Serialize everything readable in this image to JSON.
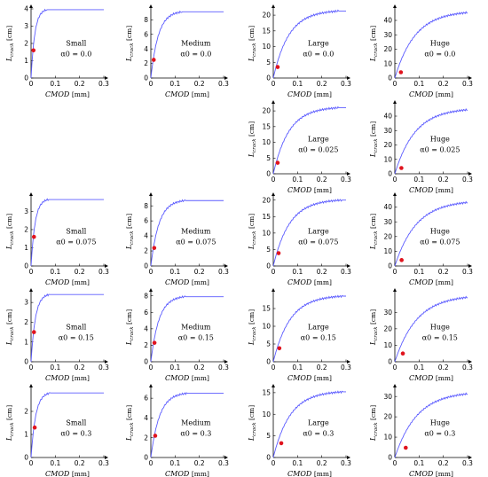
{
  "common": {
    "xlabel": "CMOD",
    "xunit": "[mm]",
    "ylabel": "L",
    "ysub": "crack",
    "yunit": "[cm]",
    "xticks": [
      0,
      0.1,
      0.2,
      0.3
    ]
  },
  "chart_data": [
    {
      "type": "line",
      "row": 0,
      "col": 0,
      "size": "Small",
      "alpha": "α0 = 0.0",
      "ymax": 4,
      "yticks": [
        0,
        1,
        2,
        3,
        4
      ],
      "xsat": 0.065,
      "ysat": 3.95,
      "point": [
        0.01,
        1.6
      ]
    },
    {
      "type": "line",
      "row": 0,
      "col": 1,
      "size": "Medium",
      "alpha": "α0 = 0.0",
      "ymax": 9.5,
      "yticks": [
        0,
        2,
        4,
        6,
        8
      ],
      "xsat": 0.13,
      "ysat": 9.1,
      "point": [
        0.012,
        2.5
      ]
    },
    {
      "type": "line",
      "row": 0,
      "col": 2,
      "size": "Large",
      "alpha": "α0 = 0.0",
      "ymax": 22,
      "yticks": [
        0,
        5,
        10,
        15,
        20
      ],
      "xsat": 0.27,
      "ysat": 21.3,
      "point": [
        0.018,
        3.5
      ]
    },
    {
      "type": "line",
      "row": 0,
      "col": 3,
      "size": "Huge",
      "alpha": "α0 = 0.0",
      "ymax": 48,
      "yticks": [
        0,
        10,
        20,
        30,
        40
      ],
      "xsat": 0.35,
      "ysat": 46,
      "point": [
        0.025,
        4
      ]
    },
    {
      "type": "line",
      "row": 1,
      "col": 2,
      "size": "Large",
      "alpha": "α0 = 0.025",
      "ymax": 22,
      "yticks": [
        0,
        5,
        10,
        15,
        20
      ],
      "xsat": 0.27,
      "ysat": 21,
      "point": [
        0.018,
        3.5
      ]
    },
    {
      "type": "line",
      "row": 1,
      "col": 3,
      "size": "Huge",
      "alpha": "α0 = 0.025",
      "ymax": 48,
      "yticks": [
        0,
        10,
        20,
        30,
        40
      ],
      "xsat": 0.35,
      "ysat": 45,
      "point": [
        0.027,
        4
      ]
    },
    {
      "type": "line",
      "row": 2,
      "col": 0,
      "size": "Small",
      "alpha": "α0 = 0.075",
      "ymax": 3.8,
      "yticks": [
        0,
        1,
        2,
        3
      ],
      "xsat": 0.07,
      "ysat": 3.65,
      "point": [
        0.012,
        1.6
      ]
    },
    {
      "type": "line",
      "row": 2,
      "col": 1,
      "size": "Medium",
      "alpha": "α0 = 0.075",
      "ymax": 9.2,
      "yticks": [
        0,
        2,
        4,
        6,
        8
      ],
      "xsat": 0.14,
      "ysat": 8.7,
      "point": [
        0.014,
        2.4
      ]
    },
    {
      "type": "line",
      "row": 2,
      "col": 2,
      "size": "Large",
      "alpha": "α0 = 0.075",
      "ymax": 21,
      "yticks": [
        0,
        5,
        10,
        15,
        20
      ],
      "xsat": 0.28,
      "ysat": 20,
      "point": [
        0.022,
        3.9
      ]
    },
    {
      "type": "line",
      "row": 2,
      "col": 3,
      "size": "Huge",
      "alpha": "α0 = 0.075",
      "ymax": 47,
      "yticks": [
        0,
        10,
        20,
        30,
        40
      ],
      "xsat": 0.37,
      "ysat": 44,
      "point": [
        0.028,
        4
      ]
    },
    {
      "type": "line",
      "row": 3,
      "col": 0,
      "size": "Small",
      "alpha": "α0 = 0.15",
      "ymax": 3.5,
      "yticks": [
        0,
        1,
        2,
        3
      ],
      "xsat": 0.075,
      "ysat": 3.4,
      "point": [
        0.012,
        1.5
      ]
    },
    {
      "type": "line",
      "row": 3,
      "col": 1,
      "size": "Medium",
      "alpha": "α0 = 0.15",
      "ymax": 8.4,
      "yticks": [
        0,
        2,
        4,
        6,
        8
      ],
      "xsat": 0.14,
      "ysat": 7.9,
      "point": [
        0.015,
        2.3
      ]
    },
    {
      "type": "line",
      "row": 3,
      "col": 2,
      "size": "Large",
      "alpha": "α0 = 0.15",
      "ymax": 19.5,
      "yticks": [
        0,
        5,
        10,
        15
      ],
      "xsat": 0.29,
      "ysat": 18.5,
      "point": [
        0.025,
        3.8
      ]
    },
    {
      "type": "line",
      "row": 3,
      "col": 3,
      "size": "Huge",
      "alpha": "α0 = 0.15",
      "ymax": 42,
      "yticks": [
        0,
        10,
        20,
        30
      ],
      "xsat": 0.38,
      "ysat": 40,
      "point": [
        0.033,
        5
      ]
    },
    {
      "type": "line",
      "row": 4,
      "col": 0,
      "size": "Small",
      "alpha": "α0 = 0.3",
      "ymax": 3,
      "yticks": [
        0,
        1,
        2
      ],
      "xsat": 0.08,
      "ysat": 2.8,
      "point": [
        0.015,
        1.3
      ]
    },
    {
      "type": "line",
      "row": 4,
      "col": 1,
      "size": "Medium",
      "alpha": "α0 = 0.3",
      "ymax": 7,
      "yticks": [
        0,
        2,
        4,
        6
      ],
      "xsat": 0.15,
      "ysat": 6.5,
      "point": [
        0.018,
        2.2
      ]
    },
    {
      "type": "line",
      "row": 4,
      "col": 2,
      "size": "Large",
      "alpha": "α0 = 0.3",
      "ymax": 16,
      "yticks": [
        0,
        5,
        10,
        15
      ],
      "xsat": 0.29,
      "ysat": 15.2,
      "point": [
        0.033,
        3.3
      ]
    },
    {
      "type": "line",
      "row": 4,
      "col": 3,
      "size": "Huge",
      "alpha": "α0 = 0.3",
      "ymax": 34,
      "yticks": [
        0,
        10,
        20,
        30
      ],
      "xsat": 0.38,
      "ysat": 32,
      "point": [
        0.045,
        4.8
      ]
    }
  ]
}
